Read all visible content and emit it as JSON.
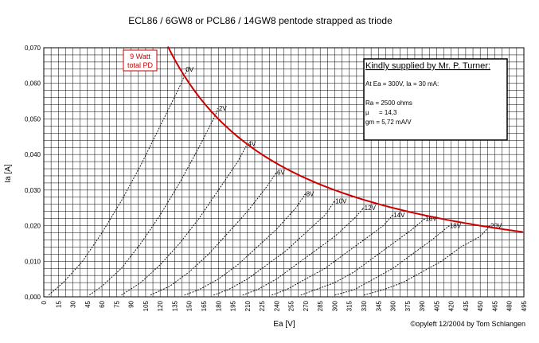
{
  "chart_data": {
    "type": "line",
    "title": "ECL86 / 6GW8 or PCL86 / 14GW8 pentode strapped as triode",
    "xlabel": "Ea [V]",
    "ylabel": "Ia [A]",
    "xlim": [
      0,
      495
    ],
    "ylim": [
      0,
      0.07
    ],
    "xticks": [
      "0",
      "15",
      "30",
      "45",
      "60",
      "75",
      "90",
      "105",
      "120",
      "135",
      "150",
      "165",
      "180",
      "195",
      "210",
      "225",
      "240",
      "255",
      "270",
      "285",
      "300",
      "315",
      "330",
      "345",
      "360",
      "375",
      "390",
      "405",
      "420",
      "435",
      "450",
      "465",
      "480",
      "495"
    ],
    "yticks": [
      "0,000",
      "0,010",
      "0,020",
      "0,030",
      "0,040",
      "0,050",
      "0,060",
      "0,070"
    ],
    "grid": true,
    "series": [
      {
        "name": "0V",
        "label": "0V",
        "x": [
          5,
          20,
          40,
          60,
          80,
          100,
          120,
          140,
          148
        ],
        "y": [
          0.0005,
          0.004,
          0.01,
          0.018,
          0.027,
          0.037,
          0.048,
          0.059,
          0.064
        ]
      },
      {
        "name": "-2V",
        "label": "-2V",
        "x": [
          47,
          60,
          80,
          100,
          120,
          140,
          160,
          175,
          180
        ],
        "y": [
          0.0005,
          0.003,
          0.008,
          0.015,
          0.023,
          0.032,
          0.042,
          0.05,
          0.053
        ]
      },
      {
        "name": "-4V",
        "label": "-4V",
        "x": [
          80,
          100,
          120,
          140,
          160,
          180,
          200,
          210
        ],
        "y": [
          0.0005,
          0.004,
          0.009,
          0.015,
          0.022,
          0.03,
          0.038,
          0.043
        ]
      },
      {
        "name": "-6V",
        "label": "-6V",
        "x": [
          110,
          130,
          150,
          170,
          190,
          210,
          230,
          240
        ],
        "y": [
          0.0005,
          0.003,
          0.007,
          0.012,
          0.018,
          0.024,
          0.031,
          0.035
        ]
      },
      {
        "name": "-8V",
        "label": "-8V",
        "x": [
          145,
          160,
          180,
          200,
          220,
          240,
          260,
          270
        ],
        "y": [
          0.0005,
          0.002,
          0.005,
          0.009,
          0.014,
          0.019,
          0.025,
          0.029
        ]
      },
      {
        "name": "-10V",
        "label": "-10V",
        "x": [
          175,
          190,
          210,
          230,
          250,
          270,
          290,
          300
        ],
        "y": [
          0.0005,
          0.002,
          0.005,
          0.009,
          0.013,
          0.018,
          0.023,
          0.027
        ]
      },
      {
        "name": "-12V",
        "label": "-12V",
        "x": [
          205,
          220,
          240,
          260,
          280,
          300,
          320,
          330
        ],
        "y": [
          0.0005,
          0.002,
          0.005,
          0.009,
          0.013,
          0.017,
          0.022,
          0.025
        ]
      },
      {
        "name": "-14V",
        "label": "-14V",
        "x": [
          235,
          250,
          270,
          290,
          310,
          330,
          350,
          360
        ],
        "y": [
          0.0005,
          0.002,
          0.005,
          0.008,
          0.012,
          0.016,
          0.02,
          0.023
        ]
      },
      {
        "name": "-16V",
        "label": "-16V",
        "x": [
          265,
          280,
          300,
          320,
          340,
          360,
          380,
          393
        ],
        "y": [
          0.0005,
          0.002,
          0.004,
          0.007,
          0.011,
          0.015,
          0.019,
          0.022
        ]
      },
      {
        "name": "-18V",
        "label": "-18V",
        "x": [
          300,
          320,
          340,
          360,
          380,
          400,
          418
        ],
        "y": [
          0.0005,
          0.002,
          0.005,
          0.008,
          0.012,
          0.016,
          0.02
        ]
      },
      {
        "name": "-20V",
        "label": "-20V",
        "x": [
          330,
          350,
          370,
          390,
          410,
          430,
          450,
          460
        ],
        "y": [
          0.0005,
          0.002,
          0.004,
          0.007,
          0.01,
          0.014,
          0.017,
          0.02
        ]
      }
    ],
    "pd_curve": {
      "name": "9 Watt total PD",
      "power_w": 9,
      "x_from": 128,
      "x_to": 495
    },
    "annotations": {
      "pd_label_line1": "9 Watt",
      "pd_label_line2": "total PD",
      "info_heading": "Kindly supplied by Mr. P. Turner:",
      "info_line1": "At Ea = 300V, Ia = 30 mA:",
      "info_line2": "Ra = 2500 ohms",
      "info_line3_label": "µ",
      "info_line3_value": "= 14,3",
      "info_line4": "gm = 5,72 mA/V",
      "credit": "©opyleft 12/2004 by Tom Schlangen"
    },
    "colors": {
      "curve": "#000000",
      "pd": "#cc0000",
      "grid": "#000000",
      "background": "#ffffff"
    }
  }
}
